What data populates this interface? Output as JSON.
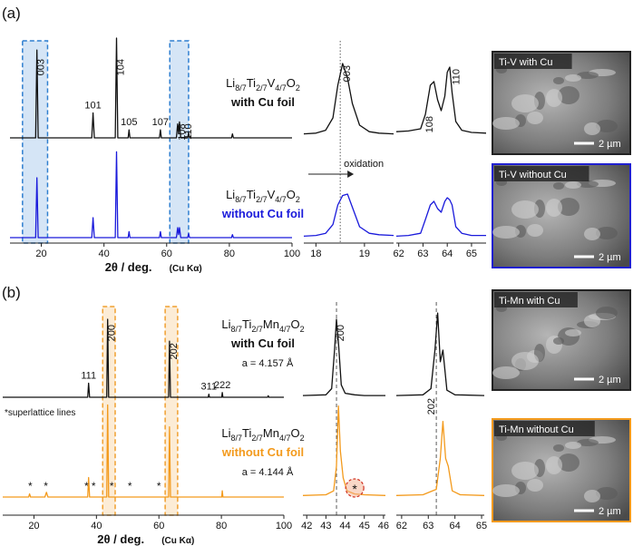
{
  "panels": [
    {
      "label": "(a)"
    },
    {
      "label": "(b)"
    }
  ],
  "chart_data": [
    {
      "type": "line",
      "xlim": [
        10,
        100
      ],
      "xticks": [
        20,
        40,
        60,
        80,
        100
      ],
      "xlabel": "2θ / deg.",
      "xlabel_note": "(Cu Kα)",
      "formula_parts": [
        "Li",
        "8/7",
        "Ti",
        "2/7",
        "V",
        "4/7",
        "O",
        "2"
      ],
      "highlight": [
        [
          14,
          22
        ],
        [
          61,
          67
        ]
      ],
      "highlight_color": "#2f7fd0",
      "series": [
        {
          "name": "with Cu foil",
          "color": "#111111",
          "x": [
            10,
            18.2,
            18.6,
            19.0,
            36.1,
            36.5,
            36.9,
            43.6,
            44,
            44.4,
            47.7,
            48,
            48.3,
            57.7,
            58,
            58.3,
            63.1,
            63.5,
            63.8,
            64.1,
            64.5,
            66.7,
            67,
            67.3,
            80.7,
            81,
            81.3,
            100
          ],
          "values": [
            0,
            0,
            88,
            0,
            0,
            25,
            0,
            0,
            100,
            0,
            0,
            8,
            0,
            0,
            8,
            0,
            0,
            14,
            4,
            16,
            0,
            0,
            5,
            0,
            0,
            4,
            0,
            0
          ]
        },
        {
          "name": "without Cu foil",
          "color": "#1a1adb",
          "x": [
            10,
            18.2,
            18.6,
            19.0,
            36.1,
            36.5,
            36.9,
            43.6,
            44,
            44.4,
            47.7,
            48,
            48.3,
            57.7,
            58,
            58.3,
            63.1,
            63.5,
            63.8,
            64.1,
            64.5,
            66.7,
            67,
            67.3,
            80.7,
            81,
            81.3,
            100
          ],
          "values": [
            0,
            0,
            60,
            0,
            0,
            20,
            0,
            0,
            86,
            0,
            0,
            6,
            0,
            0,
            6,
            0,
            0,
            10,
            3,
            10,
            0,
            0,
            4,
            0,
            0,
            3,
            0,
            0
          ]
        }
      ],
      "peak_labels": [
        {
          "label": "003",
          "x": 18.6,
          "rotate": true
        },
        {
          "label": "101",
          "x": 36.5,
          "rotate": false
        },
        {
          "label": "104",
          "x": 44,
          "rotate": true
        },
        {
          "label": "105",
          "x": 48,
          "rotate": false
        },
        {
          "label": "107",
          "x": 58,
          "rotate": false
        },
        {
          "label": "108",
          "x": 63.5,
          "rotate": true
        },
        {
          "label": "110",
          "x": 65.5,
          "rotate": true
        }
      ]
    },
    {
      "type": "line",
      "xlim": [
        17.75,
        19.6
      ],
      "xticks": [
        18,
        19
      ],
      "ref_line": 18.5,
      "arrow_label": "oxidation",
      "series": [
        {
          "color": "#111111",
          "x": [
            17.75,
            18,
            18.2,
            18.35,
            18.45,
            18.55,
            18.65,
            18.75,
            18.9,
            19.1,
            19.3,
            19.6
          ],
          "values": [
            3,
            4,
            8,
            25,
            70,
            100,
            80,
            45,
            15,
            6,
            4,
            3
          ]
        },
        {
          "color": "#1a1adb",
          "x": [
            17.75,
            18,
            18.2,
            18.35,
            18.45,
            18.55,
            18.65,
            18.75,
            18.9,
            19.1,
            19.3,
            19.6
          ],
          "values": [
            2,
            3,
            6,
            18,
            45,
            58,
            60,
            42,
            15,
            6,
            4,
            3
          ]
        }
      ],
      "peak_labels": [
        {
          "label": "003",
          "x": 18.55,
          "rotate": true
        }
      ]
    },
    {
      "type": "line",
      "xlim": [
        61.9,
        65.6
      ],
      "xticks": [
        62,
        63,
        64,
        65
      ],
      "series": [
        {
          "color": "#111111",
          "x": [
            61.9,
            62.4,
            62.9,
            63.1,
            63.3,
            63.45,
            63.6,
            63.75,
            63.9,
            64.0,
            64.1,
            64.2,
            64.35,
            64.6,
            65,
            65.6
          ],
          "values": [
            6,
            7,
            10,
            30,
            70,
            75,
            50,
            35,
            55,
            88,
            95,
            60,
            20,
            8,
            5,
            4
          ]
        },
        {
          "color": "#1a1adb",
          "x": [
            61.9,
            62.4,
            62.9,
            63.1,
            63.3,
            63.45,
            63.6,
            63.75,
            63.9,
            64.0,
            64.1,
            64.2,
            64.35,
            64.6,
            65,
            65.6
          ],
          "values": [
            2,
            3,
            6,
            25,
            45,
            50,
            40,
            35,
            50,
            55,
            52,
            45,
            15,
            6,
            3,
            3
          ]
        }
      ],
      "peak_labels": [
        {
          "label": "108",
          "x": 63.1,
          "rotate": true
        },
        {
          "label": "110",
          "x": 64.2,
          "rotate": true
        }
      ]
    },
    {
      "type": "line",
      "xlim": [
        10,
        100
      ],
      "xticks": [
        20,
        40,
        60,
        80,
        100
      ],
      "xlabel": "2θ / deg.",
      "xlabel_note": "(Cu Kα)",
      "formula_parts": [
        "Li",
        "8/7",
        "Ti",
        "2/7",
        "Mn",
        "4/7",
        "O",
        "2"
      ],
      "note": "*superlattice lines",
      "highlight": [
        [
          42,
          46
        ],
        [
          62,
          66
        ]
      ],
      "highlight_color": "#f0a030",
      "series": [
        {
          "name": "with Cu foil",
          "lattice": "a = 4.157 Å",
          "color": "#111111",
          "x": [
            10,
            37.2,
            37.5,
            37.8,
            43.3,
            43.6,
            43.9,
            63.1,
            63.4,
            63.7,
            75.8,
            76,
            76.2,
            80.1,
            80.3,
            80.5,
            94.8,
            95,
            95.2,
            100
          ],
          "values": [
            0,
            0,
            18,
            0,
            0,
            100,
            0,
            0,
            72,
            0,
            0,
            4,
            0,
            0,
            6,
            0,
            0,
            2,
            0,
            0
          ]
        },
        {
          "name": "without Cu foil",
          "lattice": "a = 4.144 Å",
          "color": "#f39a1c",
          "x": [
            10,
            18.3,
            18.6,
            18.9,
            23.5,
            24,
            24.5,
            37.2,
            37.5,
            37.8,
            43.3,
            43.6,
            43.9,
            63.1,
            63.4,
            63.7,
            80.1,
            80.3,
            80.5,
            100
          ],
          "values": [
            0,
            0,
            4,
            0,
            0,
            6,
            0,
            0,
            25,
            0,
            0,
            118,
            0,
            0,
            90,
            0,
            0,
            8,
            0,
            0
          ]
        }
      ],
      "star_markers": {
        "label": "*",
        "x": [
          18.8,
          23.8,
          36.8,
          39.1,
          44.9,
          50.7,
          60
        ]
      },
      "peak_labels": [
        {
          "label": "111",
          "x": 37.5,
          "rotate": false
        },
        {
          "label": "200",
          "x": 43.6,
          "rotate": true
        },
        {
          "label": "202",
          "x": 63.4,
          "rotate": true
        },
        {
          "label": "311",
          "x": 76,
          "rotate": false
        },
        {
          "label": "222",
          "x": 80.3,
          "rotate": false
        }
      ]
    },
    {
      "type": "line",
      "xlim": [
        41.8,
        46.1
      ],
      "xticks": [
        42,
        43,
        44,
        45,
        46
      ],
      "ref_line": 43.55,
      "circled_marker": {
        "label": "*",
        "x": 44.5
      },
      "series": [
        {
          "color": "#111111",
          "x": [
            41.8,
            43,
            43.3,
            43.45,
            43.55,
            43.65,
            43.8,
            44,
            44.5,
            45,
            46.1
          ],
          "values": [
            1,
            2,
            10,
            60,
            100,
            70,
            15,
            4,
            2,
            1,
            1
          ]
        },
        {
          "color": "#f39a1c",
          "x": [
            41.8,
            43,
            43.4,
            43.55,
            43.65,
            43.75,
            43.9,
            44.1,
            44.5,
            45,
            46.1
          ],
          "values": [
            2,
            3,
            8,
            40,
            118,
            60,
            25,
            8,
            4,
            3,
            2
          ]
        }
      ],
      "peak_labels": [
        {
          "label": "200",
          "x": 43.55,
          "rotate": true
        }
      ]
    },
    {
      "type": "line",
      "xlim": [
        61.8,
        65.1
      ],
      "xticks": [
        62,
        63,
        64,
        65
      ],
      "ref_line": 63.3,
      "series": [
        {
          "color": "#111111",
          "x": [
            61.8,
            62.8,
            63.1,
            63.25,
            63.35,
            63.45,
            63.55,
            63.7,
            64,
            65.1
          ],
          "values": [
            1,
            2,
            10,
            60,
            108,
            45,
            60,
            8,
            2,
            1
          ]
        },
        {
          "color": "#f39a1c",
          "x": [
            61.8,
            62.8,
            63.3,
            63.45,
            63.55,
            63.65,
            63.75,
            63.9,
            64.2,
            65.1
          ],
          "values": [
            2,
            3,
            10,
            50,
            98,
            50,
            40,
            8,
            3,
            2
          ]
        }
      ],
      "peak_labels": [
        {
          "label": "202",
          "x": 62.95,
          "rotate": true
        }
      ]
    }
  ],
  "images": [
    {
      "label": "Ti-V with Cu",
      "scale": "2 µm",
      "border": "#222222"
    },
    {
      "label": "Ti-V without Cu",
      "scale": "2 µm",
      "border": "#2020d0"
    },
    {
      "label": "Ti-Mn with Cu",
      "scale": "2 µm",
      "border": "#222222"
    },
    {
      "label": "Ti-Mn without Cu",
      "scale": "2 µm",
      "border": "#f39a1c"
    }
  ]
}
